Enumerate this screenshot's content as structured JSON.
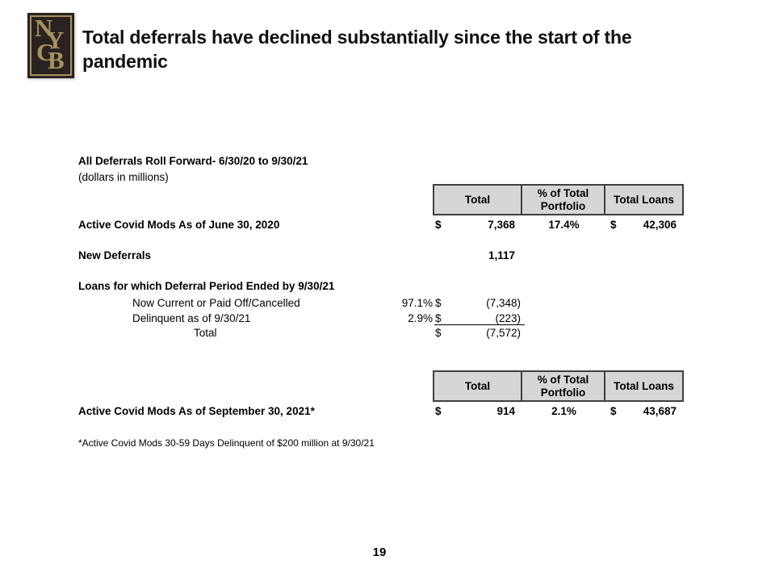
{
  "slide": {
    "title_line1": "Total deferrals have declined substantially since the start of the",
    "title_line2": "pandemic",
    "page_number": "19",
    "logo": {
      "n": "N",
      "y": "Y",
      "c": "C",
      "b": "B"
    }
  },
  "colors": {
    "logo_background": "#292220",
    "logo_gold": "#a6925f",
    "table_header_background": "#d6d6d6",
    "table_border": "#3f3f3f"
  },
  "heading": {
    "line1": "All Deferrals Roll Forward- 6/30/20 to 9/30/21",
    "line2": "(dollars in millions)"
  },
  "table_header": {
    "col1": "Total",
    "col2": "% of Total Portfolio",
    "col3": "Total Loans"
  },
  "rows": {
    "june2020": {
      "label": "Active Covid Mods As of June 30, 2020",
      "dollar": "$",
      "total": "7,368",
      "pct": "17.4%",
      "dollar2": "$",
      "loans": "42,306"
    },
    "new_deferrals": {
      "label": "New Deferrals",
      "total": "1,117"
    },
    "ended": {
      "label": "Loans for which Deferral Period Ended by 9/30/21"
    },
    "current": {
      "label": "Now Current or Paid Off/Cancelled",
      "pct": "97.1%",
      "dollar": "$",
      "total": "(7,348)"
    },
    "delinquent": {
      "label": "Delinquent as of 9/30/21",
      "pct": "2.9%",
      "dollar": "$",
      "total": "(223)"
    },
    "subtotal": {
      "label": "Total",
      "dollar": "$",
      "total": "(7,572)"
    },
    "sept2021": {
      "label": "Active Covid Mods As of September 30, 2021*",
      "dollar": "$",
      "total": "914",
      "pct": "2.1%",
      "dollar2": "$",
      "loans": "43,687"
    }
  },
  "footnote": "*Active Covid Mods 30-59 Days Delinquent of $200 million at 9/30/21"
}
